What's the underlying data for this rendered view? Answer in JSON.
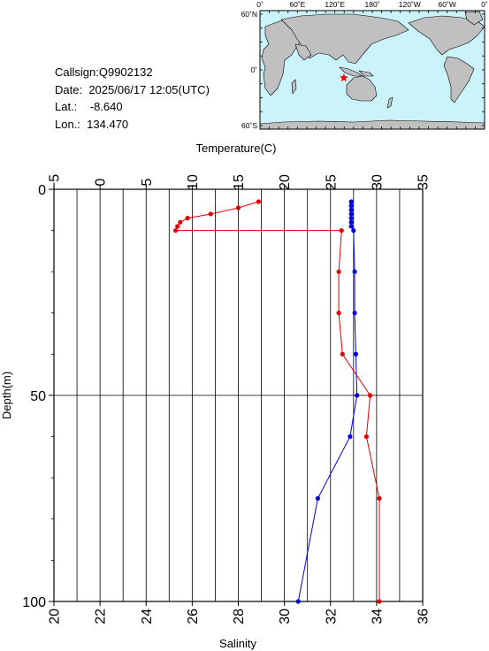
{
  "info": {
    "callsign_label": "Callsign:",
    "callsign": "Q9902132",
    "date_label": "Date:",
    "date": "2025/06/17 12:05(UTC)",
    "lat_label": "Lat.:",
    "lat": "-8.640",
    "lon_label": "Lon.:",
    "lon": "134.470"
  },
  "map": {
    "top_labels": [
      "0˚",
      "60˚E",
      "120˚E",
      "180˚",
      "120˚W",
      "60˚W",
      "0˚"
    ],
    "left_labels": [
      "60˚N",
      "0˚",
      "60˚S"
    ],
    "station": {
      "lat": -8.64,
      "lon": 134.47
    },
    "ocean_color": "#cbf3fb",
    "land_color": "#c0c0c0",
    "marker_color": "#ff0000"
  },
  "chart_data": {
    "type": "line",
    "depth_axis": {
      "label": "Depth(m)",
      "range": [
        0,
        100
      ],
      "ticks": [
        0,
        50,
        100
      ]
    },
    "temperature_axis": {
      "label": "Temperature(C)",
      "range": [
        -5,
        35
      ],
      "ticks": [
        -5,
        0,
        5,
        10,
        15,
        20,
        25,
        30,
        35
      ]
    },
    "salinity_axis": {
      "label": "Salinity",
      "range": [
        20,
        36
      ],
      "ticks": [
        20,
        22,
        24,
        26,
        28,
        30,
        32,
        34,
        36
      ]
    },
    "grid": true,
    "series": [
      {
        "quantity": "temperature",
        "color": "#e00000",
        "depth": [
          3,
          4.5,
          6,
          7,
          8,
          9,
          10,
          10,
          20,
          30,
          40,
          50,
          60,
          75,
          100
        ],
        "values": [
          17.2,
          15.0,
          12.0,
          9.5,
          8.7,
          8.4,
          8.2,
          26.2,
          25.9,
          25.9,
          26.3,
          29.3,
          28.9,
          30.3,
          30.3
        ]
      },
      {
        "quantity": "salinity",
        "color": "#0000e0",
        "depth": [
          3,
          4,
          5,
          6,
          7,
          8,
          9,
          10,
          20,
          30,
          40,
          50,
          60,
          75,
          100
        ],
        "values": [
          32.9,
          32.9,
          32.9,
          32.9,
          32.9,
          32.9,
          32.9,
          33.0,
          33.05,
          33.05,
          33.1,
          33.15,
          32.85,
          31.45,
          30.6
        ]
      }
    ]
  }
}
